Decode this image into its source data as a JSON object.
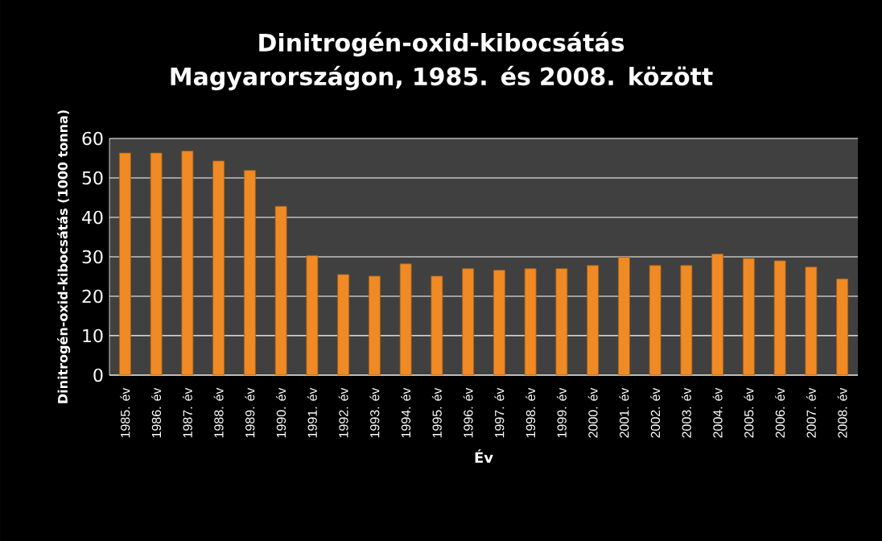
{
  "chart_data": {
    "type": "bar",
    "title": "Dinitrogén-oxid-kibocsátás\nMagyarországon,   1985. és 2008. között",
    "xlabel": "Év",
    "ylabel": "Dinitrogén-oxid-kibocsátás   (1000 tonna)",
    "categories": [
      "1985. év",
      "1986. év",
      "1987. év",
      "1988. év",
      "1989. év",
      "1990. év",
      "1991. év",
      "1992. év",
      "1993. év",
      "1994. év",
      "1995. év",
      "1996. év",
      "1997. év",
      "1998. év",
      "1999. év",
      "2000. év",
      "2001. év",
      "2002. év",
      "2003. év",
      "2004. év",
      "2005. év",
      "2006. év",
      "2007. év",
      "2008. év"
    ],
    "values": [
      56.3,
      56.3,
      56.8,
      54.3,
      51.9,
      42.8,
      30.3,
      25.5,
      25.1,
      28.2,
      25.1,
      27.0,
      26.6,
      27.0,
      27.0,
      27.8,
      29.9,
      27.8,
      27.8,
      30.7,
      29.6,
      29.0,
      27.4,
      24.4
    ],
    "color": "#f08a24",
    "ylim": [
      0,
      60
    ],
    "yticks": [
      0,
      10,
      20,
      30,
      40,
      50,
      60
    ],
    "grid": "y"
  }
}
